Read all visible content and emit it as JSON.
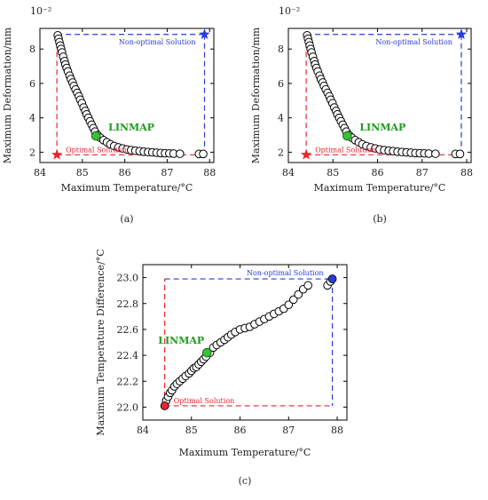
{
  "chart_data": [
    {
      "type": "scatter",
      "panel_label": "(a)",
      "exponent_label": "10⁻²",
      "xlabel": "Maximum Temperature/°C",
      "ylabel": "Maximum Deformation/mm",
      "xlim": [
        84,
        88.1
      ],
      "ylim": [
        1.4,
        9.2
      ],
      "xticks": [
        84,
        85,
        86,
        87,
        88
      ],
      "yticks": [
        2,
        4,
        6,
        8
      ],
      "tick_labels_x": [
        "84",
        "85",
        "86",
        "87",
        "88"
      ],
      "tick_labels_y": [
        "2",
        "4",
        "6",
        "8"
      ],
      "points": [
        [
          84.42,
          8.8
        ],
        [
          84.44,
          8.6
        ],
        [
          84.46,
          8.4
        ],
        [
          84.48,
          8.2
        ],
        [
          84.5,
          8.0
        ],
        [
          84.52,
          7.8
        ],
        [
          84.55,
          7.55
        ],
        [
          84.58,
          7.3
        ],
        [
          84.6,
          7.1
        ],
        [
          84.63,
          6.9
        ],
        [
          84.66,
          6.7
        ],
        [
          84.7,
          6.45
        ],
        [
          84.73,
          6.25
        ],
        [
          84.77,
          6.05
        ],
        [
          84.8,
          5.85
        ],
        [
          84.84,
          5.65
        ],
        [
          84.88,
          5.45
        ],
        [
          84.92,
          5.25
        ],
        [
          84.95,
          5.05
        ],
        [
          84.99,
          4.85
        ],
        [
          85.03,
          4.6
        ],
        [
          85.07,
          4.4
        ],
        [
          85.1,
          4.2
        ],
        [
          85.14,
          4.0
        ],
        [
          85.18,
          3.8
        ],
        [
          85.22,
          3.6
        ],
        [
          85.26,
          3.4
        ],
        [
          85.3,
          3.2
        ],
        [
          85.36,
          3.0
        ],
        [
          85.42,
          2.85
        ],
        [
          85.5,
          2.7
        ],
        [
          85.58,
          2.58
        ],
        [
          85.66,
          2.46
        ],
        [
          85.75,
          2.36
        ],
        [
          85.85,
          2.28
        ],
        [
          85.95,
          2.22
        ],
        [
          86.05,
          2.16
        ],
        [
          86.15,
          2.12
        ],
        [
          86.25,
          2.09
        ],
        [
          86.35,
          2.06
        ],
        [
          86.45,
          2.03
        ],
        [
          86.55,
          2.01
        ],
        [
          86.65,
          1.99
        ],
        [
          86.75,
          1.97
        ],
        [
          86.85,
          1.95
        ],
        [
          86.95,
          1.94
        ],
        [
          87.05,
          1.93
        ],
        [
          87.15,
          1.92
        ],
        [
          87.3,
          1.91
        ],
        [
          87.75,
          1.9
        ],
        [
          87.85,
          1.9
        ]
      ],
      "linmap_point": [
        85.32,
        2.95
      ],
      "optimal_point": [
        84.4,
        1.85
      ],
      "nonoptimal_point": [
        87.88,
        8.85
      ],
      "annotations": {
        "linmap": "LINMAP",
        "optimal": "Optimal Solution",
        "nonoptimal": "Non-optimal Solution"
      },
      "colors": {
        "optimal": "#e8262c",
        "nonoptimal": "#2a3bd8",
        "linmap": "#39c039",
        "marker_edge": "#000000",
        "marker_fill": "#ffffff"
      }
    },
    {
      "type": "scatter",
      "panel_label": "(b)",
      "exponent_label": "10⁻²",
      "xlabel": "Maximum Temperature/°C",
      "ylabel": "Maximum Deformation/mm",
      "xlim": [
        84,
        88.1
      ],
      "ylim": [
        1.4,
        9.2
      ],
      "xticks": [
        84,
        85,
        86,
        87,
        88
      ],
      "yticks": [
        2,
        4,
        6,
        8
      ],
      "tick_labels_x": [
        "84",
        "85",
        "86",
        "87",
        "88"
      ],
      "tick_labels_y": [
        "2",
        "4",
        "6",
        "8"
      ],
      "points": [
        [
          84.42,
          8.8
        ],
        [
          84.44,
          8.6
        ],
        [
          84.46,
          8.4
        ],
        [
          84.48,
          8.2
        ],
        [
          84.5,
          8.0
        ],
        [
          84.52,
          7.8
        ],
        [
          84.55,
          7.55
        ],
        [
          84.58,
          7.3
        ],
        [
          84.6,
          7.1
        ],
        [
          84.63,
          6.9
        ],
        [
          84.66,
          6.7
        ],
        [
          84.7,
          6.45
        ],
        [
          84.73,
          6.25
        ],
        [
          84.77,
          6.05
        ],
        [
          84.8,
          5.85
        ],
        [
          84.84,
          5.65
        ],
        [
          84.88,
          5.45
        ],
        [
          84.92,
          5.25
        ],
        [
          84.95,
          5.05
        ],
        [
          84.99,
          4.85
        ],
        [
          85.03,
          4.6
        ],
        [
          85.07,
          4.4
        ],
        [
          85.1,
          4.2
        ],
        [
          85.14,
          4.0
        ],
        [
          85.18,
          3.8
        ],
        [
          85.22,
          3.6
        ],
        [
          85.26,
          3.4
        ],
        [
          85.3,
          3.2
        ],
        [
          85.36,
          3.0
        ],
        [
          85.42,
          2.85
        ],
        [
          85.5,
          2.7
        ],
        [
          85.58,
          2.58
        ],
        [
          85.66,
          2.46
        ],
        [
          85.75,
          2.36
        ],
        [
          85.85,
          2.28
        ],
        [
          85.95,
          2.22
        ],
        [
          86.05,
          2.16
        ],
        [
          86.15,
          2.12
        ],
        [
          86.25,
          2.09
        ],
        [
          86.35,
          2.06
        ],
        [
          86.45,
          2.03
        ],
        [
          86.55,
          2.01
        ],
        [
          86.65,
          1.99
        ],
        [
          86.75,
          1.97
        ],
        [
          86.85,
          1.95
        ],
        [
          86.95,
          1.94
        ],
        [
          87.05,
          1.93
        ],
        [
          87.15,
          1.92
        ],
        [
          87.3,
          1.91
        ],
        [
          87.75,
          1.9
        ],
        [
          87.85,
          1.9
        ]
      ],
      "linmap_point": [
        85.32,
        2.95
      ],
      "optimal_point": [
        84.4,
        1.85
      ],
      "nonoptimal_point": [
        87.88,
        8.85
      ],
      "annotations": {
        "linmap": "LINMAP",
        "optimal": "Optimal Solution",
        "nonoptimal": "Non-optimal Solution"
      },
      "colors": {
        "optimal": "#e8262c",
        "nonoptimal": "#2a3bd8",
        "linmap": "#39c039",
        "marker_edge": "#000000",
        "marker_fill": "#ffffff"
      }
    },
    {
      "type": "scatter",
      "panel_label": "(c)",
      "xlabel": "Maximum Temperature/°C",
      "ylabel": "Maximum Temperature Difference/°C",
      "xlim": [
        84,
        88.2
      ],
      "ylim": [
        21.9,
        23.1
      ],
      "xticks": [
        84,
        85,
        86,
        87,
        88
      ],
      "yticks": [
        22.0,
        22.2,
        22.4,
        22.6,
        22.8,
        23.0
      ],
      "tick_labels_x": [
        "84",
        "85",
        "86",
        "87",
        "88"
      ],
      "tick_labels_y": [
        "22.0",
        "22.2",
        "22.4",
        "22.6",
        "22.8",
        "23.0"
      ],
      "points": [
        [
          84.48,
          22.05
        ],
        [
          84.52,
          22.08
        ],
        [
          84.56,
          22.11
        ],
        [
          84.6,
          22.13
        ],
        [
          84.65,
          22.16
        ],
        [
          84.7,
          22.18
        ],
        [
          84.76,
          22.2
        ],
        [
          84.82,
          22.22
        ],
        [
          84.88,
          22.24
        ],
        [
          84.95,
          22.26
        ],
        [
          85.0,
          22.28
        ],
        [
          85.05,
          22.3
        ],
        [
          85.1,
          22.31
        ],
        [
          85.15,
          22.33
        ],
        [
          85.2,
          22.35
        ],
        [
          85.25,
          22.37
        ],
        [
          85.3,
          22.39
        ],
        [
          85.38,
          22.42
        ],
        [
          85.45,
          22.46
        ],
        [
          85.52,
          22.48
        ],
        [
          85.6,
          22.5
        ],
        [
          85.68,
          22.52
        ],
        [
          85.75,
          22.54
        ],
        [
          85.82,
          22.56
        ],
        [
          85.9,
          22.58
        ],
        [
          86.0,
          22.6
        ],
        [
          86.1,
          22.61
        ],
        [
          86.2,
          22.62
        ],
        [
          86.3,
          22.64
        ],
        [
          86.4,
          22.66
        ],
        [
          86.5,
          22.68
        ],
        [
          86.6,
          22.7
        ],
        [
          86.7,
          22.72
        ],
        [
          86.8,
          22.74
        ],
        [
          86.9,
          22.76
        ],
        [
          87.0,
          22.79
        ],
        [
          87.1,
          22.83
        ],
        [
          87.2,
          22.87
        ],
        [
          87.3,
          22.91
        ],
        [
          87.4,
          22.94
        ],
        [
          87.8,
          22.94
        ],
        [
          87.86,
          22.97
        ]
      ],
      "linmap_point": [
        85.32,
        22.42
      ],
      "optimal_point": [
        84.45,
        22.01
      ],
      "nonoptimal_point": [
        87.9,
        22.99
      ],
      "annotations": {
        "linmap": "LINMAP",
        "optimal": "Optimal Solution",
        "nonoptimal": "Non-optimal Solution"
      },
      "colors": {
        "optimal": "#e8262c",
        "nonoptimal": "#2a3bd8",
        "linmap": "#39c039",
        "marker_edge": "#000000",
        "marker_fill": "#ffffff"
      }
    }
  ]
}
